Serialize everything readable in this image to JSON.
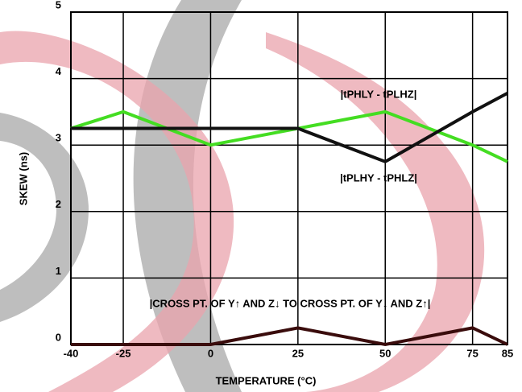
{
  "chart_data": {
    "type": "line",
    "x_label": "TEMPERATURE (°C)",
    "y_label": "SKEW (ns)",
    "x": [
      -40,
      -25,
      0,
      25,
      50,
      75,
      85
    ],
    "series": [
      {
        "name": "|tPHLY - tPLHZ|",
        "color": "#44dd22",
        "values": [
          3.25,
          3.5,
          3.0,
          3.25,
          3.5,
          3.0,
          2.75
        ]
      },
      {
        "name": "|tPLHY - tPHLZ|",
        "color": "#111111",
        "values": [
          3.25,
          3.25,
          3.25,
          3.25,
          2.75,
          3.5,
          3.78
        ]
      },
      {
        "name": "|CROSS PT. OF Y↑ AND Z↓ TO CROSS PT. OF Y↓ AND Z↑|",
        "color": "#3a0c0c",
        "values": [
          0,
          0,
          0,
          0.25,
          0,
          0.25,
          0
        ]
      }
    ],
    "xlim": [
      -40,
      85
    ],
    "xticks": [
      -40,
      -25,
      0,
      25,
      50,
      75,
      85
    ],
    "ylim": [
      0,
      5
    ],
    "yticks": [
      0,
      1,
      2,
      3,
      4,
      5
    ],
    "grid": true
  }
}
